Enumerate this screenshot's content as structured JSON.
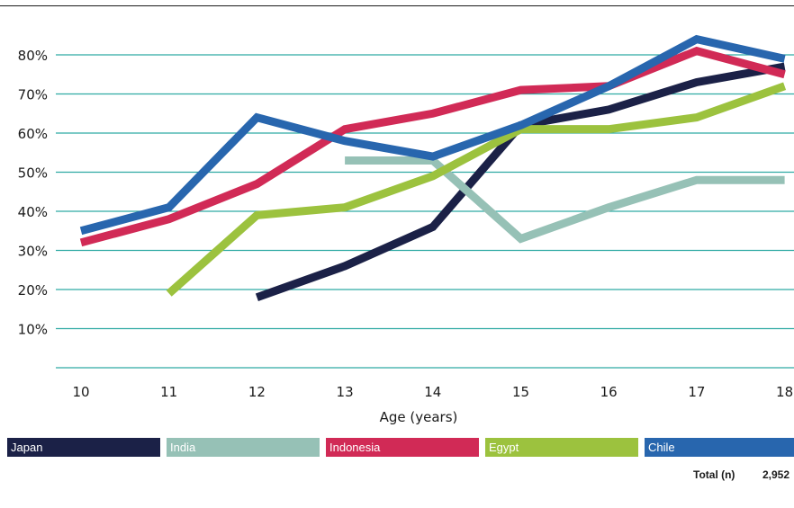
{
  "chart_data": {
    "type": "line",
    "xlabel": "Age (years)",
    "x": [
      10,
      11,
      12,
      13,
      14,
      15,
      16,
      17,
      18
    ],
    "x_tick_labels": [
      "10",
      "11",
      "12",
      "13",
      "14",
      "15",
      "16",
      "17",
      "18"
    ],
    "y_ticks": [
      10,
      20,
      30,
      40,
      50,
      60,
      70,
      80
    ],
    "y_tick_labels": [
      "10%",
      "20%",
      "30%",
      "40%",
      "50%",
      "60%",
      "70%",
      "80%"
    ],
    "ylim": [
      0,
      90
    ],
    "grid": true,
    "legend_position": "bottom",
    "series": [
      {
        "name": "Japan",
        "color": "#1b2147",
        "points": [
          [
            12,
            18
          ],
          [
            13,
            26
          ],
          [
            14,
            36
          ],
          [
            15,
            62
          ],
          [
            16,
            66
          ],
          [
            17,
            73
          ],
          [
            18,
            77
          ]
        ]
      },
      {
        "name": "India",
        "color": "#96c1b6",
        "points": [
          [
            13,
            53
          ],
          [
            14,
            53
          ],
          [
            15,
            33
          ],
          [
            16,
            41
          ],
          [
            17,
            48
          ],
          [
            18,
            48
          ]
        ]
      },
      {
        "name": "Indonesia",
        "color": "#d12a56",
        "points": [
          [
            10,
            32
          ],
          [
            11,
            38
          ],
          [
            12,
            47
          ],
          [
            13,
            61
          ],
          [
            14,
            65
          ],
          [
            15,
            71
          ],
          [
            16,
            72
          ],
          [
            17,
            81
          ],
          [
            18,
            75
          ]
        ]
      },
      {
        "name": "Egypt",
        "color": "#9cc23e",
        "points": [
          [
            11,
            19
          ],
          [
            12,
            39
          ],
          [
            13,
            41
          ],
          [
            14,
            49
          ],
          [
            15,
            61
          ],
          [
            16,
            61
          ],
          [
            17,
            64
          ],
          [
            18,
            72
          ]
        ]
      },
      {
        "name": "Chile",
        "color": "#2866ae",
        "points": [
          [
            10,
            35
          ],
          [
            11,
            41
          ],
          [
            12,
            64
          ],
          [
            13,
            58
          ],
          [
            14,
            54
          ],
          [
            15,
            62
          ],
          [
            16,
            72
          ],
          [
            17,
            84
          ],
          [
            18,
            79
          ]
        ]
      }
    ]
  },
  "footer": {
    "total_label": "Total (n)",
    "total_value": "2,952"
  }
}
